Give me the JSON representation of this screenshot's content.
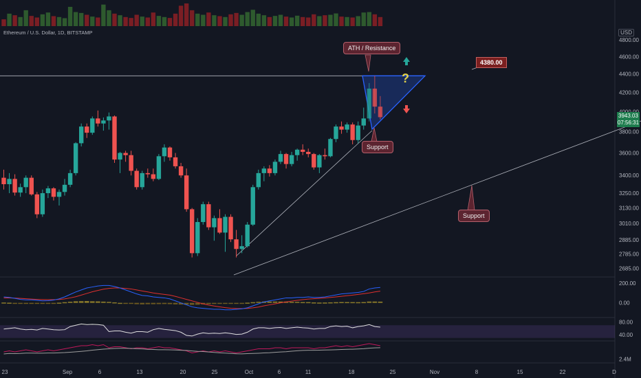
{
  "header": {
    "symbol": "Ethereum / U.S. Dollar, 1D, BITSTAMP",
    "currency": "USD"
  },
  "annotations": {
    "ath_label": "ATH / Resistance",
    "resistance_price": "4380.00",
    "support_label_1": "Support",
    "support_label_2": "Support",
    "question_mark": "?"
  },
  "current_price": {
    "price": "3943.03",
    "countdown": "07:56:31"
  },
  "colors": {
    "up": "#26a69a",
    "down": "#ef5350",
    "background": "#131722",
    "macd": "#2962ff",
    "signal": "#e0302f",
    "rsi": "#e0e0e0",
    "rsi_band": "#7e57c2"
  },
  "chart_data": {
    "type": "candlestick",
    "y_scale": "log",
    "ylim": [
      2640,
      4850
    ],
    "price_ticks": [
      "4800.00",
      "4600.00",
      "4400.00",
      "4200.00",
      "4000.00",
      "3800.00",
      "3600.00",
      "3400.00",
      "3250.00",
      "3130.00",
      "3010.00",
      "2885.00",
      "2785.00",
      "2685.00"
    ],
    "x_ticks": [
      "23",
      "Sep",
      "6",
      "13",
      "20",
      "25",
      "Oct",
      "6",
      "11",
      "18",
      "25",
      "Nov",
      "8",
      "15",
      "22",
      "D"
    ],
    "candles": [
      [
        3380,
        3450,
        3280,
        3325
      ],
      [
        3325,
        3420,
        3250,
        3370
      ],
      [
        3370,
        3410,
        3230,
        3255
      ],
      [
        3255,
        3330,
        3220,
        3300
      ],
      [
        3300,
        3400,
        3250,
        3380
      ],
      [
        3380,
        3400,
        3230,
        3240
      ],
      [
        3240,
        3260,
        3050,
        3080
      ],
      [
        3080,
        3280,
        3060,
        3250
      ],
      [
        3250,
        3310,
        3210,
        3290
      ],
      [
        3290,
        3300,
        3190,
        3220
      ],
      [
        3220,
        3280,
        3150,
        3260
      ],
      [
        3260,
        3370,
        3230,
        3320
      ],
      [
        3320,
        3450,
        3300,
        3420
      ],
      [
        3420,
        3700,
        3400,
        3690
      ],
      [
        3690,
        3880,
        3660,
        3850
      ],
      [
        3850,
        3880,
        3740,
        3790
      ],
      [
        3790,
        3950,
        3770,
        3930
      ],
      [
        3930,
        4010,
        3850,
        3880
      ],
      [
        3880,
        3940,
        3810,
        3910
      ],
      [
        3910,
        3990,
        3820,
        3950
      ],
      [
        3950,
        3960,
        3510,
        3540
      ],
      [
        3540,
        3610,
        3420,
        3600
      ],
      [
        3600,
        3620,
        3520,
        3580
      ],
      [
        3580,
        3620,
        3400,
        3440
      ],
      [
        3440,
        3460,
        3280,
        3300
      ],
      [
        3300,
        3440,
        3280,
        3420
      ],
      [
        3420,
        3460,
        3380,
        3410
      ],
      [
        3410,
        3460,
        3350,
        3370
      ],
      [
        3370,
        3590,
        3360,
        3570
      ],
      [
        3570,
        3680,
        3520,
        3650
      ],
      [
        3650,
        3660,
        3530,
        3560
      ],
      [
        3560,
        3600,
        3460,
        3480
      ],
      [
        3480,
        3510,
        3380,
        3400
      ],
      [
        3400,
        3460,
        3100,
        3120
      ],
      [
        3120,
        3130,
        2760,
        2790
      ],
      [
        2790,
        3050,
        2770,
        3020
      ],
      [
        3020,
        3180,
        3000,
        3160
      ],
      [
        3160,
        3180,
        2960,
        2980
      ],
      [
        2980,
        3070,
        2880,
        3050
      ],
      [
        3050,
        3120,
        2930,
        2940
      ],
      [
        2940,
        3080,
        2800,
        3060
      ],
      [
        3060,
        3080,
        2870,
        2890
      ],
      [
        2890,
        2960,
        2760,
        2820
      ],
      [
        2820,
        2920,
        2790,
        2840
      ],
      [
        2840,
        3020,
        2830,
        3000
      ],
      [
        3000,
        3320,
        2990,
        3300
      ],
      [
        3300,
        3450,
        3280,
        3420
      ],
      [
        3420,
        3480,
        3350,
        3460
      ],
      [
        3460,
        3490,
        3390,
        3420
      ],
      [
        3420,
        3540,
        3400,
        3520
      ],
      [
        3520,
        3620,
        3500,
        3590
      ],
      [
        3590,
        3600,
        3460,
        3500
      ],
      [
        3500,
        3610,
        3480,
        3580
      ],
      [
        3580,
        3640,
        3530,
        3630
      ],
      [
        3630,
        3680,
        3580,
        3610
      ],
      [
        3610,
        3640,
        3560,
        3590
      ],
      [
        3590,
        3600,
        3450,
        3470
      ],
      [
        3470,
        3590,
        3420,
        3580
      ],
      [
        3580,
        3640,
        3540,
        3570
      ],
      [
        3570,
        3740,
        3560,
        3730
      ],
      [
        3730,
        3870,
        3700,
        3850
      ],
      [
        3850,
        3900,
        3780,
        3820
      ],
      [
        3820,
        3890,
        3790,
        3870
      ],
      [
        3870,
        3890,
        3680,
        3720
      ],
      [
        3720,
        3900,
        3690,
        3860
      ],
      [
        3860,
        4040,
        3820,
        3930
      ],
      [
        3930,
        4300,
        3900,
        4240
      ],
      [
        4240,
        4380,
        3980,
        4050
      ],
      [
        4050,
        4160,
        3920,
        3943
      ]
    ],
    "volume": [
      30,
      55,
      48,
      40,
      70,
      45,
      38,
      52,
      60,
      44,
      40,
      35,
      85,
      62,
      58,
      50,
      42,
      38,
      95,
      70,
      55,
      48,
      40,
      36,
      50,
      42,
      38,
      60,
      45,
      40,
      36,
      55,
      90,
      100,
      70,
      55,
      50,
      60,
      48,
      44,
      40,
      52,
      58,
      50,
      62,
      72,
      55,
      48,
      40,
      45,
      50,
      42,
      38,
      46,
      40,
      38,
      52,
      44,
      48,
      50,
      56,
      42,
      40,
      38,
      44,
      60,
      62,
      52,
      40
    ],
    "macd_line": [
      60,
      55,
      45,
      35,
      30,
      30,
      25,
      20,
      22,
      28,
      40,
      60,
      85,
      110,
      130,
      150,
      160,
      170,
      175,
      175,
      165,
      150,
      130,
      110,
      90,
      75,
      70,
      60,
      55,
      50,
      40,
      20,
      0,
      -20,
      -40,
      -50,
      -55,
      -60,
      -65,
      -65,
      -70,
      -70,
      -65,
      -60,
      -50,
      -30,
      -10,
      10,
      20,
      30,
      40,
      50,
      50,
      55,
      55,
      60,
      55,
      55,
      60,
      70,
      80,
      90,
      95,
      100,
      105,
      115,
      140,
      150,
      155
    ],
    "signal_line": [
      50,
      50,
      48,
      45,
      42,
      38,
      35,
      33,
      32,
      32,
      34,
      40,
      50,
      62,
      78,
      95,
      112,
      125,
      138,
      146,
      150,
      150,
      146,
      140,
      130,
      120,
      110,
      100,
      92,
      85,
      78,
      65,
      50,
      35,
      20,
      5,
      -10,
      -22,
      -32,
      -40,
      -48,
      -54,
      -57,
      -58,
      -56,
      -50,
      -42,
      -30,
      -20,
      -10,
      0,
      10,
      18,
      25,
      32,
      38,
      42,
      46,
      50,
      55,
      60,
      66,
      72,
      78,
      85,
      92,
      100,
      110,
      118
    ],
    "rsi": [
      58,
      60,
      62,
      58,
      56,
      57,
      55,
      60,
      58,
      56,
      55,
      56,
      66,
      70,
      74,
      72,
      73,
      72,
      70,
      50,
      52,
      52,
      48,
      45,
      50,
      50,
      48,
      56,
      60,
      57,
      55,
      53,
      48,
      38,
      36,
      42,
      46,
      44,
      45,
      44,
      46,
      44,
      41,
      42,
      48,
      58,
      62,
      62,
      60,
      62,
      63,
      60,
      62,
      64,
      62,
      61,
      58,
      60,
      60,
      66,
      68,
      66,
      67,
      62,
      66,
      68,
      72,
      66,
      64
    ],
    "obv": [
      2.36,
      2.37,
      2.36,
      2.37,
      2.38,
      2.37,
      2.36,
      2.37,
      2.38,
      2.37,
      2.38,
      2.39,
      2.4,
      2.41,
      2.42,
      2.42,
      2.43,
      2.42,
      2.43,
      2.4,
      2.41,
      2.41,
      2.4,
      2.39,
      2.4,
      2.4,
      2.39,
      2.4,
      2.41,
      2.4,
      2.4,
      2.39,
      2.38,
      2.37,
      2.35,
      2.36,
      2.37,
      2.36,
      2.37,
      2.36,
      2.37,
      2.36,
      2.35,
      2.36,
      2.37,
      2.38,
      2.39,
      2.39,
      2.39,
      2.4,
      2.4,
      2.39,
      2.4,
      2.4,
      2.4,
      2.4,
      2.39,
      2.4,
      2.4,
      2.41,
      2.42,
      2.41,
      2.42,
      2.41,
      2.42,
      2.43,
      2.44,
      2.43,
      2.42
    ],
    "macd_ticks": [
      "200.00",
      "0.00"
    ],
    "rsi_ticks": [
      "80.00",
      "40.00"
    ],
    "obv_ticks": [
      "2.4M"
    ],
    "resistance_level": 4380,
    "title": "",
    "xlabel": "",
    "ylabel": ""
  }
}
